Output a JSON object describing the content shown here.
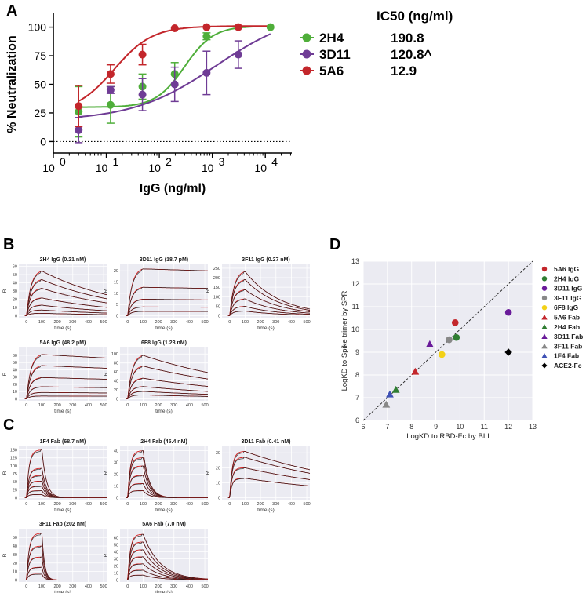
{
  "chart_data": [
    {
      "panel": "A",
      "type": "scatter",
      "xscale": "log",
      "xlim_exp": [
        0,
        4.5
      ],
      "ylim": [
        -10,
        110
      ],
      "yticks": [
        0,
        25,
        50,
        75,
        100
      ],
      "xtick_labels": [
        "10",
        "10",
        "10",
        "10",
        "10"
      ],
      "xtick_exponents": [
        "0",
        "1",
        "2",
        "3",
        "4"
      ],
      "xlabel": "IgG (ng/ml)",
      "ylabel": "% Neutralization",
      "legend_title": "IC50 (ng/ml)",
      "series": [
        {
          "name": "2H4",
          "ic50": "190.8",
          "color": "#4fae3a",
          "x": [
            3,
            12,
            48,
            195,
            780,
            12500
          ],
          "y": [
            26,
            32,
            48,
            59,
            92,
            100
          ],
          "err": [
            22,
            16,
            11,
            10,
            3,
            1
          ],
          "fit": {
            "bottom": 30,
            "top": 101,
            "ec50": 300,
            "hill": 1.6
          }
        },
        {
          "name": "3D11",
          "ic50": "120.8^",
          "color": "#6f3c95",
          "x": [
            3,
            12,
            48,
            195,
            780,
            3100
          ],
          "y": [
            10,
            45,
            41,
            50,
            60,
            76
          ],
          "err": [
            11,
            3,
            14,
            15,
            19,
            12
          ],
          "fit": {
            "bottom": 18,
            "top": 115,
            "ec50": 1200,
            "hill": 0.55
          }
        },
        {
          "name": "5A6",
          "ic50": "12.9",
          "color": "#c3262b",
          "x": [
            3,
            12,
            48,
            195,
            780,
            3100
          ],
          "y": [
            31,
            59,
            76,
            99,
            100,
            100
          ],
          "err": [
            18,
            8,
            9,
            0.5,
            0.5,
            0.5
          ],
          "fit": {
            "bottom": 25,
            "top": 101,
            "ec50": 14,
            "hill": 1.2
          }
        }
      ]
    },
    {
      "panel": "B",
      "type": "line",
      "xlabel": "time (s)",
      "ylabel": "R",
      "plots": [
        {
          "title": "2H4 IgG (0.21 nM)",
          "ymax": 60,
          "yticks": [
            0,
            10,
            20,
            30,
            40,
            50,
            60
          ],
          "plateaus": [
            56,
            45,
            34,
            22,
            13,
            7,
            3
          ],
          "decay": 0.18
        },
        {
          "title": "3D11 IgG (18.7 pM)",
          "ymax": 22,
          "yticks": [
            0,
            5,
            10,
            15,
            20
          ],
          "plateaus": [
            21.5,
            13,
            7.5,
            4,
            2
          ],
          "decay": 0.01
        },
        {
          "title": "3F11 IgG (0.27 nM)",
          "ymax": 260,
          "yticks": [
            0,
            50,
            100,
            150,
            200,
            250
          ],
          "plateaus": [
            240,
            195,
            140,
            90,
            50,
            25
          ],
          "decay": 0.45
        },
        {
          "title": "5A6 IgG (48.2 pM)",
          "ymax": 68,
          "yticks": [
            0,
            10,
            20,
            30,
            40,
            50,
            60
          ],
          "plateaus": [
            63,
            47,
            30,
            17,
            9,
            4
          ],
          "decay": 0.02
        },
        {
          "title": "6F8 IgG (1.23 nM)",
          "ymax": 110,
          "yticks": [
            0,
            20,
            40,
            60,
            80,
            100
          ],
          "plateaus": [
            100,
            75,
            47,
            28,
            17,
            9
          ],
          "decay": 0.12
        }
      ]
    },
    {
      "panel": "C",
      "type": "line",
      "xlabel": "time (s)",
      "ylabel": "R",
      "plots": [
        {
          "title": "1F4 Fab (68.7 nM)",
          "ymax": 155,
          "yticks": [
            0,
            25,
            50,
            75,
            100,
            125,
            150
          ],
          "plateaus": [
            150,
            92,
            70,
            52,
            36,
            22,
            10
          ],
          "decay": 3.5
        },
        {
          "title": "2H4 Fab (45.4 nM)",
          "ymax": 42,
          "yticks": [
            0,
            10,
            20,
            30,
            40
          ],
          "plateaus": [
            40,
            34,
            27,
            19,
            12,
            6
          ],
          "decay": 2.6
        },
        {
          "title": "3D11 Fab (0.41 nM)",
          "ymax": 33,
          "yticks": [
            0,
            10,
            20,
            30
          ],
          "plateaus": [
            31,
            27,
            20,
            13
          ],
          "decay": 0.12
        },
        {
          "title": "3F11 Fab (202 nM)",
          "ymax": 58,
          "yticks": [
            0,
            10,
            20,
            30,
            40,
            50
          ],
          "plateaus": [
            55,
            40,
            27,
            15,
            7
          ],
          "decay": 6.0
        },
        {
          "title": "5A6 Fab (7.0 nM)",
          "ymax": 70,
          "yticks": [
            0,
            10,
            20,
            30,
            40,
            50,
            60
          ],
          "plateaus": [
            65,
            54,
            43,
            33,
            23,
            14,
            7
          ],
          "decay": 0.9
        }
      ]
    },
    {
      "panel": "D",
      "type": "scatter",
      "xlabel": "LogKD to RBD-Fc by BLI",
      "ylabel": "LogKD to Spike trimer by SPR",
      "xlim": [
        6,
        13
      ],
      "ylim": [
        6,
        13
      ],
      "ticks": [
        6,
        7,
        8,
        9,
        10,
        11,
        12,
        13
      ],
      "points": [
        {
          "name": "5A6 IgG",
          "shape": "circle",
          "color": "#c3262b",
          "x": 9.8,
          "y": 10.3
        },
        {
          "name": "2H4 IgG",
          "shape": "circle",
          "color": "#2f7d32",
          "x": 9.85,
          "y": 9.65
        },
        {
          "name": "3D11 IgG",
          "shape": "circle",
          "color": "#6a1b9a",
          "x": 12.0,
          "y": 10.75
        },
        {
          "name": "3F11 IgG",
          "shape": "circle",
          "color": "#888888",
          "x": 9.55,
          "y": 9.55
        },
        {
          "name": "6F8 IgG",
          "shape": "circle",
          "color": "#f3d117",
          "x": 9.25,
          "y": 8.9
        },
        {
          "name": "5A6 Fab",
          "shape": "triangle",
          "color": "#c3262b",
          "x": 8.15,
          "y": 8.15
        },
        {
          "name": "2H4 Fab",
          "shape": "triangle",
          "color": "#2f7d32",
          "x": 7.35,
          "y": 7.35
        },
        {
          "name": "3D11 Fab",
          "shape": "triangle",
          "color": "#6a1b9a",
          "x": 8.75,
          "y": 9.35
        },
        {
          "name": "3F11 Fab",
          "shape": "triangle",
          "color": "#888888",
          "x": 6.95,
          "y": 6.7
        },
        {
          "name": "1F4 Fab",
          "shape": "triangle",
          "color": "#3f51b5",
          "x": 7.1,
          "y": 7.15
        },
        {
          "name": "ACE2-Fc",
          "shape": "diamond",
          "color": "#000000",
          "x": 12.0,
          "y": 9.0
        }
      ]
    }
  ],
  "labels": {
    "A": "A",
    "B": "B",
    "C": "C",
    "D": "D"
  }
}
